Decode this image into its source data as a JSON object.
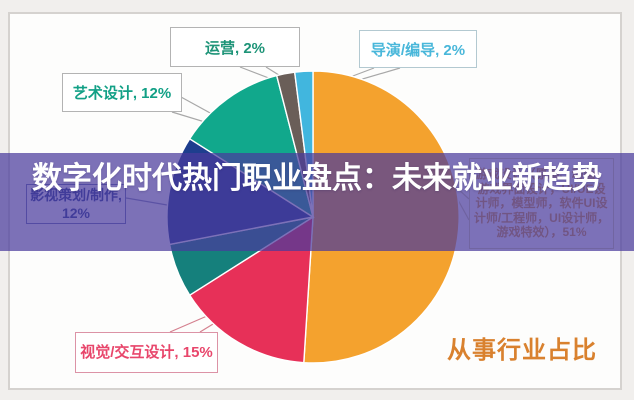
{
  "banner": {
    "title": "数字化时代热门职业盘点：未来就业新趋势"
  },
  "caption": {
    "text": "从事行业占比",
    "color": "#D9812E"
  },
  "chart_data": {
    "type": "pie",
    "title": "从事行业占比",
    "direction": "clockwise",
    "start_angle_deg": 0,
    "legend_position": "callout-labels",
    "slices": [
      {
        "id": "game-design",
        "label": "游戏设计（原画、动画、游戏界面设计，UI/UE设计师，模型师，软件UI设计师/工程师，UI设计师，游戏特效），51%",
        "value": 51,
        "color": "#F4A22E",
        "label_color": "#D89A40"
      },
      {
        "id": "visual-interaction-design",
        "label": "视觉/交互设计, 15%",
        "value": 15,
        "color": "#E73058",
        "label_color": "#E8466B"
      },
      {
        "id": "unlabeled-slice",
        "label": "",
        "value": 6,
        "color": "#15807C",
        "label_color": ""
      },
      {
        "id": "film-planning-production",
        "label": "影视策划/制作, 12%",
        "value": 12,
        "color": "#1E3E8E",
        "label_color": "#2B4193"
      },
      {
        "id": "art-design",
        "label": "艺术设计, 12%",
        "value": 12,
        "color": "#11A88C",
        "label_color": "#12A086"
      },
      {
        "id": "operations",
        "label": "运营, 2%",
        "value": 2,
        "color": "#6A5E58",
        "label_color": "#1E9478"
      },
      {
        "id": "director-editor",
        "label": "导演/编导, 2%",
        "value": 2,
        "color": "#41B6DE",
        "label_color": "#49B7DA"
      }
    ]
  }
}
